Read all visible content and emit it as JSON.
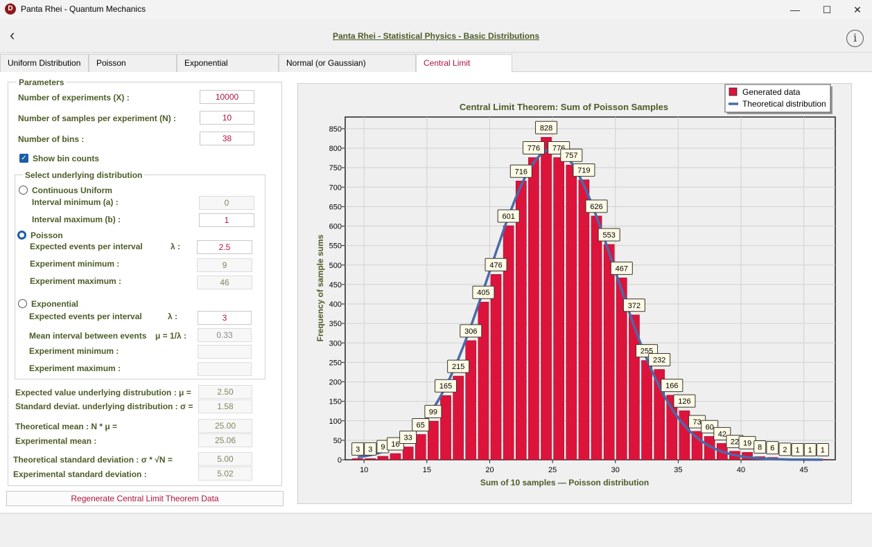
{
  "window": {
    "title": "Panta Rhei - Quantum Mechanics",
    "app_icon_letter": "D",
    "minimize": "—",
    "maximize": "☐",
    "close": "✕"
  },
  "header": {
    "back": "‹",
    "title": "Panta Rhei - Statistical Physics - Basic Distributions",
    "info": "i"
  },
  "tabs": [
    {
      "label": "Uniform Distribution"
    },
    {
      "label": "Poisson Distribution"
    },
    {
      "label": "Exponential Distribution"
    },
    {
      "label": "Normal (or Gaussian) Distribution"
    },
    {
      "label": "Central Limit Theorem"
    }
  ],
  "params": {
    "title": "Parameters",
    "num_experiments_label": "Number of experiments (X) :",
    "num_experiments_value": "10000",
    "num_samples_label": "Number of samples per experiment (N)  :",
    "num_samples_value": "10",
    "num_bins_label": "Number of bins :",
    "num_bins_value": "38",
    "show_bin_counts_label": "Show bin counts",
    "show_bin_counts_checked": true
  },
  "underlying": {
    "title": "Select underlying distribution",
    "uniform_label": "Continuous Uniform",
    "interval_min_label": "Interval minimum (a) :",
    "interval_min_value": "0",
    "interval_max_label": "Interval maximum (b) :",
    "interval_max_value": "1",
    "poisson_label": "Poisson",
    "poisson_events_label": "Expected events per interval",
    "poisson_lambda_symbol": "λ  :",
    "poisson_events_value": "2.5",
    "poisson_exp_min_label": "Experiment minimum :",
    "poisson_exp_min_value": "9",
    "poisson_exp_max_label": "Experiment maximum :",
    "poisson_exp_max_value": "46",
    "exponential_label": "Exponential",
    "exp_events_label": "Expected events per interval",
    "exp_lambda_symbol": "λ :",
    "exp_events_value": "3",
    "exp_mean_label": "Mean interval between events",
    "exp_mu_symbol": "μ = 1/λ :",
    "exp_mean_value": "0.33",
    "exp_min_label": "Experiment minimum :",
    "exp_min_value": "",
    "exp_max_label": "Experiment maximum :",
    "exp_max_value": "",
    "selected": "Poisson"
  },
  "results": {
    "expected_label": "Expected value underlying distrubution :  μ =",
    "expected_value": "2.50",
    "stddev_label": "Standard deviat. underlying distribution :  σ =",
    "stddev_value": "1.58",
    "theo_mean_label": "Theoretical mean :  N * μ =",
    "theo_mean_value": "25.00",
    "exp_mean_label": "Experimental mean :",
    "exp_mean_value": "25.06",
    "theo_sd_label": "Theoretical standard deviation :  σ * √N =",
    "theo_sd_value": "5.00",
    "exp_sd_label": "Experimental standard deviation :",
    "exp_sd_value": "5.02"
  },
  "regenerate_label": "Regenerate Central Limit Theorem Data",
  "colors": {
    "bar": "#dc143c",
    "curve": "#4a6aa8",
    "title_green": "#4b5d27",
    "accent_red": "#b0143c"
  },
  "chart_data": {
    "type": "bar",
    "title": "Central Limit Theorem: Sum of Poisson Samples",
    "xlabel": "Sum of 10 samples — Poisson distribution",
    "ylabel": "Frequency of sample sums",
    "xlim": [
      8.5,
      47.5
    ],
    "ylim": [
      0,
      880
    ],
    "xticks": [
      10,
      15,
      20,
      25,
      30,
      35,
      40,
      45
    ],
    "yticks": [
      0,
      50,
      100,
      150,
      200,
      250,
      300,
      350,
      400,
      450,
      500,
      550,
      600,
      650,
      700,
      750,
      800,
      850
    ],
    "grid": true,
    "legend_position": "top-right",
    "series": [
      {
        "name": "Generated data",
        "type": "bar"
      },
      {
        "name": "Theoretical distribution",
        "type": "line"
      }
    ],
    "bins": [
      {
        "x": 9.5,
        "count": 3
      },
      {
        "x": 10.5,
        "count": 3
      },
      {
        "x": 11.5,
        "count": 9
      },
      {
        "x": 12.5,
        "count": 16
      },
      {
        "x": 13.5,
        "count": 33
      },
      {
        "x": 14.5,
        "count": 65
      },
      {
        "x": 15.5,
        "count": 99
      },
      {
        "x": 16.5,
        "count": 165
      },
      {
        "x": 17.5,
        "count": 215
      },
      {
        "x": 18.5,
        "count": 306
      },
      {
        "x": 19.5,
        "count": 405
      },
      {
        "x": 20.5,
        "count": 476
      },
      {
        "x": 21.5,
        "count": 601
      },
      {
        "x": 22.5,
        "count": 716
      },
      {
        "x": 23.5,
        "count": 776
      },
      {
        "x": 24.5,
        "count": 828
      },
      {
        "x": 25.5,
        "count": 776
      },
      {
        "x": 26.5,
        "count": 757
      },
      {
        "x": 27.5,
        "count": 719
      },
      {
        "x": 28.5,
        "count": 626
      },
      {
        "x": 29.5,
        "count": 553
      },
      {
        "x": 30.5,
        "count": 467
      },
      {
        "x": 31.5,
        "count": 372
      },
      {
        "x": 32.5,
        "count": 255
      },
      {
        "x": 33.5,
        "count": 232
      },
      {
        "x": 34.5,
        "count": 166
      },
      {
        "x": 35.5,
        "count": 126
      },
      {
        "x": 36.5,
        "count": 73
      },
      {
        "x": 37.5,
        "count": 60
      },
      {
        "x": 38.5,
        "count": 42
      },
      {
        "x": 39.5,
        "count": 22
      },
      {
        "x": 40.5,
        "count": 19
      },
      {
        "x": 41.5,
        "count": 8
      },
      {
        "x": 42.5,
        "count": 6
      },
      {
        "x": 43.5,
        "count": 2
      },
      {
        "x": 44.5,
        "count": 1
      },
      {
        "x": 45.5,
        "count": 1
      },
      {
        "x": 46.5,
        "count": 1
      }
    ],
    "theoretical": {
      "mean": 25.0,
      "sd": 5.0,
      "total": 10000,
      "bin_width": 1.0
    }
  }
}
